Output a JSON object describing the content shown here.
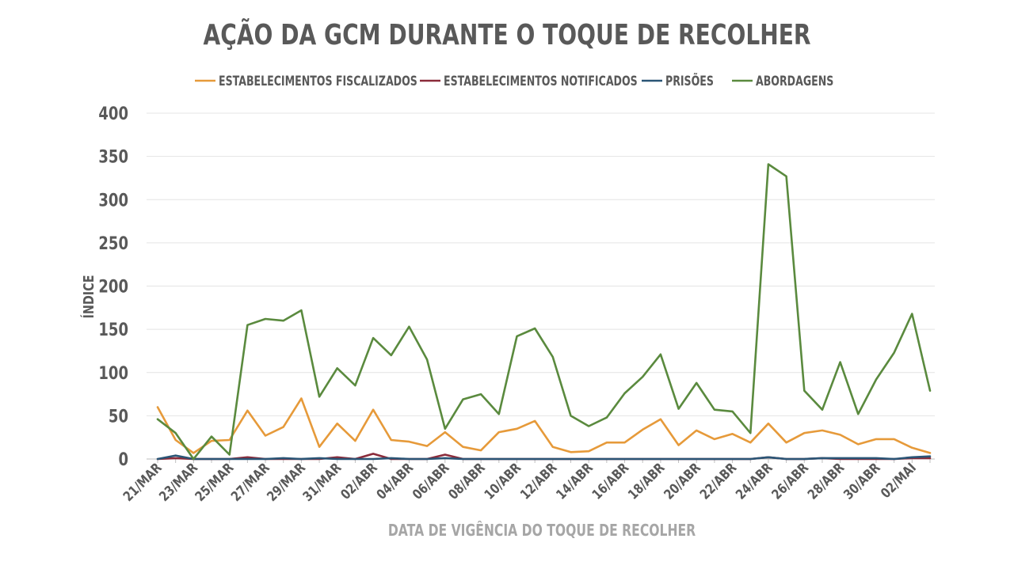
{
  "chart_data": {
    "type": "line",
    "title": "AÇÃO DA GCM DURANTE O TOQUE DE RECOLHER",
    "xlabel": "DATA DE VIGÊNCIA DO TOQUE DE RECOLHER",
    "ylabel": "ÍNDICE",
    "ylim": [
      0,
      400
    ],
    "yticks": [
      0,
      50,
      100,
      150,
      200,
      250,
      300,
      350,
      400
    ],
    "grid": true,
    "legend_position": "top",
    "x": [
      "21/MAR",
      "22/MAR",
      "23/MAR",
      "24/MAR",
      "25/MAR",
      "26/MAR",
      "27/MAR",
      "28/MAR",
      "29/MAR",
      "30/MAR",
      "31/MAR",
      "01/ABR",
      "02/ABR",
      "03/ABR",
      "04/ABR",
      "05/ABR",
      "06/ABR",
      "07/ABR",
      "08/ABR",
      "09/ABR",
      "10/ABR",
      "11/ABR",
      "12/ABR",
      "13/ABR",
      "14/ABR",
      "15/ABR",
      "16/ABR",
      "17/ABR",
      "18/ABR",
      "19/ABR",
      "20/ABR",
      "21/ABR",
      "22/ABR",
      "23/ABR",
      "24/ABR",
      "25/ABR",
      "26/ABR",
      "27/ABR",
      "28/ABR",
      "29/ABR",
      "30/ABR",
      "01/MAI",
      "02/MAI",
      "03/MAI"
    ],
    "tick_labels": [
      "21/MAR",
      "23/MAR",
      "25/MAR",
      "27/MAR",
      "29/MAR",
      "31/MAR",
      "02/ABR",
      "04/ABR",
      "06/ABR",
      "08/ABR",
      "10/ABR",
      "12/ABR",
      "14/ABR",
      "16/ABR",
      "18/ABR",
      "20/ABR",
      "22/ABR",
      "24/ABR",
      "26/ABR",
      "28/ABR",
      "30/ABR",
      "02/MAI"
    ],
    "series": [
      {
        "name": "ESTABELECIMENTOS FISCALIZADOS",
        "color": "#E69A3A",
        "values": [
          60,
          22,
          7,
          21,
          22,
          56,
          27,
          37,
          70,
          14,
          41,
          21,
          57,
          22,
          20,
          15,
          31,
          14,
          10,
          31,
          35,
          44,
          14,
          8,
          9,
          19,
          19,
          34,
          46,
          16,
          33,
          23,
          29,
          19,
          41,
          19,
          30,
          33,
          28,
          17,
          23,
          23,
          13,
          7
        ]
      },
      {
        "name": "ESTABELECIMENTOS NOTIFICADOS",
        "color": "#8B2B3A",
        "values": [
          0,
          1,
          0,
          0,
          0,
          2,
          0,
          0,
          0,
          0,
          2,
          0,
          6,
          0,
          0,
          0,
          5,
          0,
          0,
          0,
          0,
          0,
          0,
          0,
          0,
          0,
          0,
          0,
          0,
          0,
          0,
          0,
          0,
          0,
          2,
          0,
          0,
          1,
          0,
          0,
          0,
          0,
          1,
          1
        ]
      },
      {
        "name": "PRISÕES",
        "color": "#2A5576",
        "values": [
          0,
          4,
          0,
          0,
          0,
          0,
          0,
          1,
          0,
          1,
          0,
          0,
          0,
          1,
          0,
          0,
          1,
          0,
          0,
          0,
          0,
          0,
          0,
          0,
          0,
          0,
          0,
          0,
          0,
          0,
          0,
          0,
          0,
          0,
          2,
          0,
          0,
          1,
          1,
          1,
          1,
          0,
          2,
          3
        ]
      },
      {
        "name": "ABORDAGENS",
        "color": "#5A8A3E",
        "values": [
          46,
          30,
          0,
          26,
          5,
          155,
          162,
          160,
          172,
          72,
          105,
          85,
          140,
          120,
          153,
          115,
          35,
          69,
          75,
          52,
          142,
          151,
          118,
          50,
          38,
          48,
          76,
          95,
          121,
          58,
          88,
          57,
          55,
          30,
          341,
          327,
          79,
          57,
          112,
          52,
          92,
          123,
          168,
          79
        ]
      }
    ]
  }
}
